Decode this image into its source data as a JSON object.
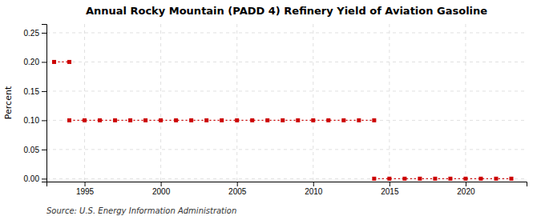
{
  "chart_data": {
    "type": "line",
    "title": "Annual Rocky Mountain (PADD 4) Refinery Yield of Aviation Gasoline",
    "y_label": "Percent",
    "source": "Source: U.S. Energy Information Administration",
    "x": [
      1993,
      1994,
      1995,
      1996,
      1997,
      1998,
      1999,
      2000,
      2001,
      2002,
      2003,
      2004,
      2005,
      2006,
      2007,
      2008,
      2009,
      2010,
      2011,
      2012,
      2013,
      2014,
      2015,
      2016,
      2017,
      2018,
      2019,
      2020,
      2021,
      2022,
      2023
    ],
    "series": [
      {
        "values": [
          0.2,
          0.2,
          null,
          null,
          null,
          null,
          null,
          null,
          null,
          null,
          null,
          null,
          null,
          null,
          null,
          null,
          null,
          null,
          null,
          null,
          null,
          null,
          null,
          null,
          null,
          null,
          null,
          null,
          null,
          null,
          null
        ]
      },
      {
        "values": [
          null,
          0.1,
          0.1,
          0.1,
          0.1,
          0.1,
          0.1,
          0.1,
          0.1,
          0.1,
          0.1,
          0.1,
          0.1,
          0.1,
          0.1,
          0.1,
          0.1,
          0.1,
          0.1,
          0.1,
          0.1,
          0.1,
          null,
          null,
          null,
          null,
          null,
          null,
          null,
          null,
          null
        ]
      },
      {
        "values": [
          null,
          null,
          null,
          null,
          null,
          null,
          null,
          null,
          null,
          null,
          null,
          null,
          null,
          null,
          null,
          null,
          null,
          null,
          null,
          null,
          null,
          0.0,
          0.0,
          0.0,
          0.0,
          0.0,
          0.0,
          0.0,
          0.0,
          0.0,
          0.0
        ]
      }
    ],
    "color": "#cc0000",
    "marker": "square",
    "line_style": "dotted",
    "xlim": [
      1992.5,
      2024
    ],
    "xticks": [
      1995,
      2000,
      2005,
      2010,
      2015,
      2020
    ],
    "ylim": [
      -0.005,
      0.265
    ],
    "yticks": [
      {
        "value": 0.0,
        "label": "0.00"
      },
      {
        "value": 0.05,
        "label": "0.05"
      },
      {
        "value": 0.1,
        "label": "0.10"
      },
      {
        "value": 0.15,
        "label": "0.15"
      },
      {
        "value": 0.2,
        "label": "0.20"
      },
      {
        "value": 0.25,
        "label": "0.25"
      }
    ],
    "grid": true
  }
}
